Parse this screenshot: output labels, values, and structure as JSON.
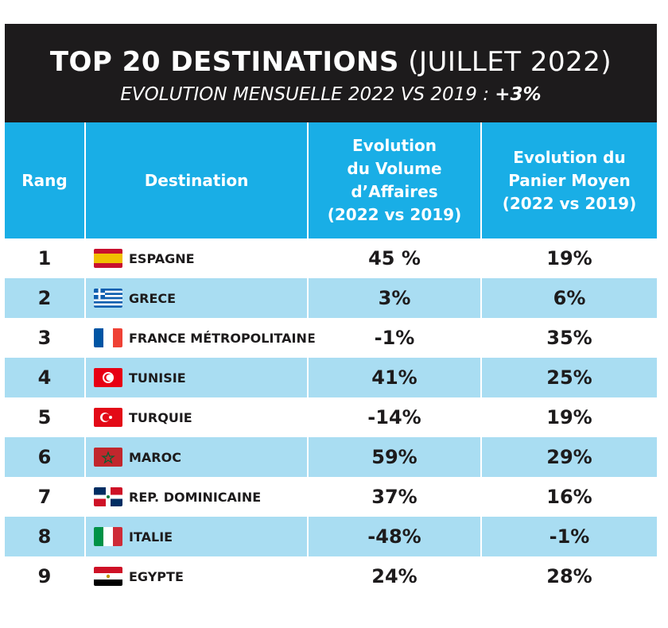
{
  "title": {
    "bold_part": "TOP 20 DESTINATIONS",
    "normal_part": "(JUILLET 2022)",
    "subtitle_prefix": "EVOLUTION MENSUELLE 2022 VS 2019 :",
    "subtitle_value": "+3%"
  },
  "header": {
    "rank": "Rang",
    "destination": "Destination",
    "volume": "Evolution\ndu Volume\nd’Affaires\n(2022 vs 2019)",
    "panier": "Evolution du\nPanier Moyen\n(2022 vs 2019)"
  },
  "colors": {
    "title_bg": "#1d1b1c",
    "header_bg": "#19aee6",
    "alt_row": "#a9ddf2"
  },
  "rows": [
    {
      "rank": "1",
      "flag": "spain-flag-icon",
      "name": "ESPAGNE",
      "volume": "45 %",
      "panier": "19%"
    },
    {
      "rank": "2",
      "flag": "greece-flag-icon",
      "name": "GRECE",
      "volume": "3%",
      "panier": "6%"
    },
    {
      "rank": "3",
      "flag": "france-flag-icon",
      "name": "FRANCE MÉTROPOLITAINE",
      "volume": "-1%",
      "panier": "35%"
    },
    {
      "rank": "4",
      "flag": "tunisia-flag-icon",
      "name": "TUNISIE",
      "volume": "41%",
      "panier": "25%"
    },
    {
      "rank": "5",
      "flag": "turkey-flag-icon",
      "name": "TURQUIE",
      "volume": "-14%",
      "panier": "19%"
    },
    {
      "rank": "6",
      "flag": "morocco-flag-icon",
      "name": "MAROC",
      "volume": "59%",
      "panier": "29%"
    },
    {
      "rank": "7",
      "flag": "dominican-republic-flag-icon",
      "name": "REP. DOMINICAINE",
      "volume": "37%",
      "panier": "16%"
    },
    {
      "rank": "8",
      "flag": "italy-flag-icon",
      "name": "ITALIE",
      "volume": "-48%",
      "panier": "-1%"
    },
    {
      "rank": "9",
      "flag": "egypt-flag-icon",
      "name": "EGYPTE",
      "volume": "24%",
      "panier": "28%"
    }
  ]
}
